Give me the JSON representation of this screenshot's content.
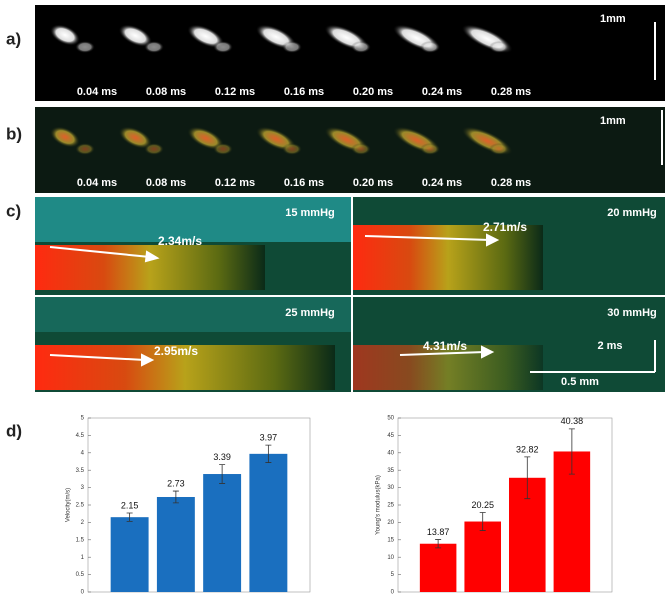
{
  "figure": {
    "panels": [
      {
        "label": "a)",
        "frame_labels": [
          "0.04 ms",
          "0.08 ms",
          "0.12 ms",
          "0.16 ms",
          "0.20 ms",
          "0.24 ms",
          "0.28 ms"
        ],
        "scale": "1mm"
      },
      {
        "label": "b)",
        "frame_labels": [
          "0.04 ms",
          "0.08 ms",
          "0.12 ms",
          "0.16 ms",
          "0.20 ms",
          "0.24 ms",
          "0.28 ms"
        ],
        "scale": "1mm"
      },
      {
        "label": "c)",
        "plots": [
          {
            "pressure": "15 mmHg",
            "velocity": "2.34m/s"
          },
          {
            "pressure": "20 mmHg",
            "velocity": "2.71m/s"
          },
          {
            "pressure": "25 mmHg",
            "velocity": "2.95m/s"
          },
          {
            "pressure": "30 mmHg",
            "velocity": "4.31m/s"
          }
        ],
        "scale_time": "2 ms",
        "scale_length": "0.5 mm"
      },
      {
        "label": "d)"
      }
    ]
  },
  "chart_data": [
    {
      "type": "bar",
      "ylabel": "Velocity(m/s)",
      "categories": [
        null,
        null,
        null,
        null
      ],
      "values": [
        2.15,
        2.73,
        3.39,
        3.97
      ],
      "errors": [
        0.12,
        0.17,
        0.27,
        0.25
      ],
      "color": "#1a6fbf",
      "ylim": [
        0,
        5
      ],
      "yticks": [
        0,
        0.5,
        1,
        1.5,
        2,
        2.5,
        3,
        3.5,
        4,
        4.5,
        5
      ]
    },
    {
      "type": "bar",
      "ylabel": "Young's modulus(kPa)",
      "categories": [
        null,
        null,
        null,
        null
      ],
      "values": [
        13.87,
        20.25,
        32.82,
        40.38
      ],
      "errors": [
        1.2,
        2.6,
        6,
        6.5
      ],
      "color": "#ff0000",
      "ylim": [
        0,
        50
      ],
      "yticks": [
        0,
        5,
        10,
        15,
        20,
        25,
        30,
        35,
        40,
        45,
        50
      ]
    }
  ]
}
